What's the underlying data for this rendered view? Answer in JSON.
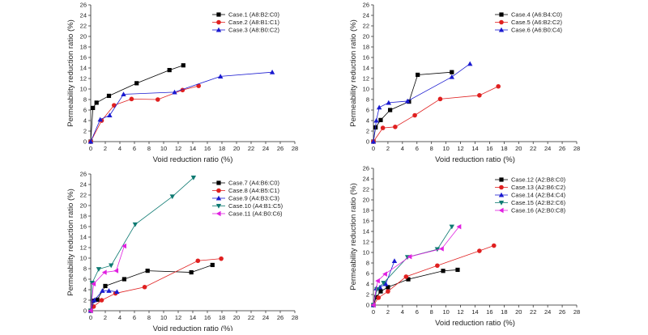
{
  "chart_data": [
    {
      "type": "scatter",
      "xlabel": "Void reduction ratio (%)",
      "ylabel": "Permeability reduction ratio (%)",
      "xlim": [
        0,
        28
      ],
      "ylim": [
        0,
        26
      ],
      "xticks": [
        0,
        2,
        4,
        6,
        8,
        10,
        12,
        14,
        16,
        18,
        20,
        22,
        24,
        26,
        28
      ],
      "yticks": [
        0,
        2,
        4,
        6,
        8,
        10,
        12,
        14,
        16,
        18,
        20,
        22,
        24,
        26
      ],
      "legend_position": "top-right",
      "series": [
        {
          "name": "Case.1 (A8:B2:C0)",
          "color": "#000000",
          "marker": "square",
          "points": [
            [
              0,
              0
            ],
            [
              0.3,
              6.4
            ],
            [
              0.8,
              7.4
            ],
            [
              2.5,
              8.7
            ],
            [
              6.3,
              11.1
            ],
            [
              10.8,
              13.6
            ],
            [
              12.7,
              14.5
            ]
          ]
        },
        {
          "name": "Case.2 (A8:B1:C1)",
          "color": "#e02020",
          "marker": "circle",
          "points": [
            [
              0,
              0
            ],
            [
              1.5,
              4.0
            ],
            [
              3.2,
              6.9
            ],
            [
              5.6,
              8.1
            ],
            [
              9.2,
              8.0
            ],
            [
              12.6,
              9.8
            ],
            [
              14.8,
              10.6
            ]
          ]
        },
        {
          "name": "Case.3 (A8:B0:C2)",
          "color": "#1a1ad0",
          "marker": "triangle",
          "points": [
            [
              0,
              0
            ],
            [
              1.3,
              4.2
            ],
            [
              2.6,
              5.0
            ],
            [
              4.5,
              9.0
            ],
            [
              11.5,
              9.4
            ],
            [
              17.8,
              12.4
            ],
            [
              24.9,
              13.2
            ]
          ]
        }
      ]
    },
    {
      "type": "scatter",
      "xlabel": "Void reduction ratio (%)",
      "ylabel": "Permeability reduction ratio (%)",
      "xlim": [
        0,
        28
      ],
      "ylim": [
        0,
        26
      ],
      "xticks": [
        0,
        2,
        4,
        6,
        8,
        10,
        12,
        14,
        16,
        18,
        20,
        22,
        24,
        26,
        28
      ],
      "yticks": [
        0,
        2,
        4,
        6,
        8,
        10,
        12,
        14,
        16,
        18,
        20,
        22,
        24,
        26
      ],
      "legend_position": "top-right",
      "series": [
        {
          "name": "Case.4 (A6:B4:C0)",
          "color": "#000000",
          "marker": "square",
          "points": [
            [
              0,
              0
            ],
            [
              0.3,
              2.7
            ],
            [
              1.0,
              4.1
            ],
            [
              2.3,
              6.0
            ],
            [
              4.9,
              7.6
            ],
            [
              6.1,
              12.7
            ],
            [
              10.8,
              13.2
            ]
          ]
        },
        {
          "name": "Case.5 (A6:B2:C2)",
          "color": "#e02020",
          "marker": "circle",
          "points": [
            [
              0,
              0
            ],
            [
              1.3,
              2.6
            ],
            [
              3.0,
              2.8
            ],
            [
              5.7,
              5.0
            ],
            [
              9.2,
              8.1
            ],
            [
              14.6,
              8.8
            ],
            [
              17.2,
              10.5
            ]
          ]
        },
        {
          "name": "Case.6 (A6:B0:C4)",
          "color": "#1a1ad0",
          "marker": "triangle",
          "points": [
            [
              0,
              0
            ],
            [
              0.4,
              4.0
            ],
            [
              0.8,
              6.5
            ],
            [
              2.1,
              7.4
            ],
            [
              4.7,
              7.7
            ],
            [
              10.8,
              12.3
            ],
            [
              13.3,
              14.8
            ]
          ]
        }
      ]
    },
    {
      "type": "scatter",
      "xlabel": "Void reduction ratio (%)",
      "ylabel": "Permeability reduction ratio (%)",
      "xlim": [
        0,
        28
      ],
      "ylim": [
        0,
        26
      ],
      "xticks": [
        0,
        2,
        4,
        6,
        8,
        10,
        12,
        14,
        16,
        18,
        20,
        22,
        24,
        26,
        28
      ],
      "yticks": [
        0,
        2,
        4,
        6,
        8,
        10,
        12,
        14,
        16,
        18,
        20,
        22,
        24,
        26
      ],
      "legend_position": "top-right",
      "series": [
        {
          "name": "Case.7 (A4:B6:C0)",
          "color": "#000000",
          "marker": "square",
          "points": [
            [
              0,
              0
            ],
            [
              0.3,
              1.9
            ],
            [
              0.9,
              2.1
            ],
            [
              2.0,
              4.7
            ],
            [
              4.6,
              6.0
            ],
            [
              7.8,
              7.6
            ],
            [
              13.8,
              7.3
            ],
            [
              16.7,
              8.7
            ]
          ]
        },
        {
          "name": "Case.8 (A4:B5:C1)",
          "color": "#e02020",
          "marker": "circle",
          "points": [
            [
              0,
              0
            ],
            [
              0.4,
              0.8
            ],
            [
              1.5,
              2.0
            ],
            [
              3.4,
              3.3
            ],
            [
              7.4,
              4.5
            ],
            [
              14.7,
              9.5
            ],
            [
              17.9,
              9.9
            ]
          ]
        },
        {
          "name": "Case.9 (A4:B3:C3)",
          "color": "#1a1ad0",
          "marker": "triangle",
          "points": [
            [
              0,
              0
            ],
            [
              0.5,
              2.0
            ],
            [
              1.6,
              3.8
            ],
            [
              2.5,
              3.8
            ],
            [
              3.6,
              3.6
            ]
          ]
        },
        {
          "name": "Case.10 (A4:B1:C5)",
          "color": "#0e7a72",
          "marker": "triangle-down",
          "points": [
            [
              0,
              0
            ],
            [
              0.2,
              5.3
            ],
            [
              1.1,
              7.9
            ],
            [
              2.8,
              8.6
            ],
            [
              6.1,
              16.4
            ],
            [
              11.2,
              21.7
            ],
            [
              14.1,
              25.3
            ]
          ]
        },
        {
          "name": "Case.11 (A4:B0:C6)",
          "color": "#e020e0",
          "marker": "triangle-left",
          "points": [
            [
              0,
              0
            ],
            [
              0.4,
              5.1
            ],
            [
              1.9,
              7.3
            ],
            [
              3.5,
              7.6
            ],
            [
              4.6,
              12.3
            ]
          ]
        }
      ]
    },
    {
      "type": "scatter",
      "xlabel": "Void reduction ratio (%)",
      "ylabel": "Permeability reduction ratio (%)",
      "xlim": [
        0,
        28
      ],
      "ylim": [
        0,
        26
      ],
      "xticks": [
        0,
        2,
        4,
        6,
        8,
        10,
        12,
        14,
        16,
        18,
        20,
        22,
        24,
        26,
        28
      ],
      "yticks": [
        0,
        2,
        4,
        6,
        8,
        10,
        12,
        14,
        16,
        18,
        20,
        22,
        24,
        26
      ],
      "legend_position": "top-right",
      "series": [
        {
          "name": "Case.12 (A2:B8:C0)",
          "color": "#000000",
          "marker": "square",
          "points": [
            [
              0,
              0
            ],
            [
              0.4,
              1.5
            ],
            [
              1.0,
              2.6
            ],
            [
              2.0,
              3.4
            ],
            [
              4.8,
              4.9
            ],
            [
              9.6,
              6.5
            ],
            [
              11.6,
              6.7
            ]
          ]
        },
        {
          "name": "Case.13 (A2:B6:C2)",
          "color": "#e02020",
          "marker": "circle",
          "points": [
            [
              0,
              0
            ],
            [
              0.7,
              1.4
            ],
            [
              2.0,
              2.6
            ],
            [
              4.5,
              5.4
            ],
            [
              8.8,
              7.5
            ],
            [
              14.6,
              10.3
            ],
            [
              16.6,
              11.3
            ]
          ]
        },
        {
          "name": "Case.14 (A2:B4:C4)",
          "color": "#1a1ad0",
          "marker": "triangle",
          "points": [
            [
              0,
              0
            ],
            [
              0.4,
              3.2
            ],
            [
              0.9,
              3.4
            ],
            [
              1.7,
              4.0
            ],
            [
              2.9,
              8.4
            ]
          ]
        },
        {
          "name": "Case.15 (A2:B2:C6)",
          "color": "#0e7a72",
          "marker": "triangle-down",
          "points": [
            [
              0,
              0
            ],
            [
              0.5,
              3.0
            ],
            [
              1.4,
              4.2
            ],
            [
              4.7,
              9.1
            ],
            [
              8.8,
              10.6
            ],
            [
              10.8,
              14.9
            ]
          ]
        },
        {
          "name": "Case.16 (A2:B0:C8)",
          "color": "#e020e0",
          "marker": "triangle-left",
          "points": [
            [
              0,
              0
            ],
            [
              0.6,
              4.6
            ],
            [
              1.6,
              5.9
            ],
            [
              5.0,
              9.2
            ],
            [
              9.4,
              10.7
            ],
            [
              11.8,
              14.9
            ]
          ]
        }
      ]
    }
  ]
}
